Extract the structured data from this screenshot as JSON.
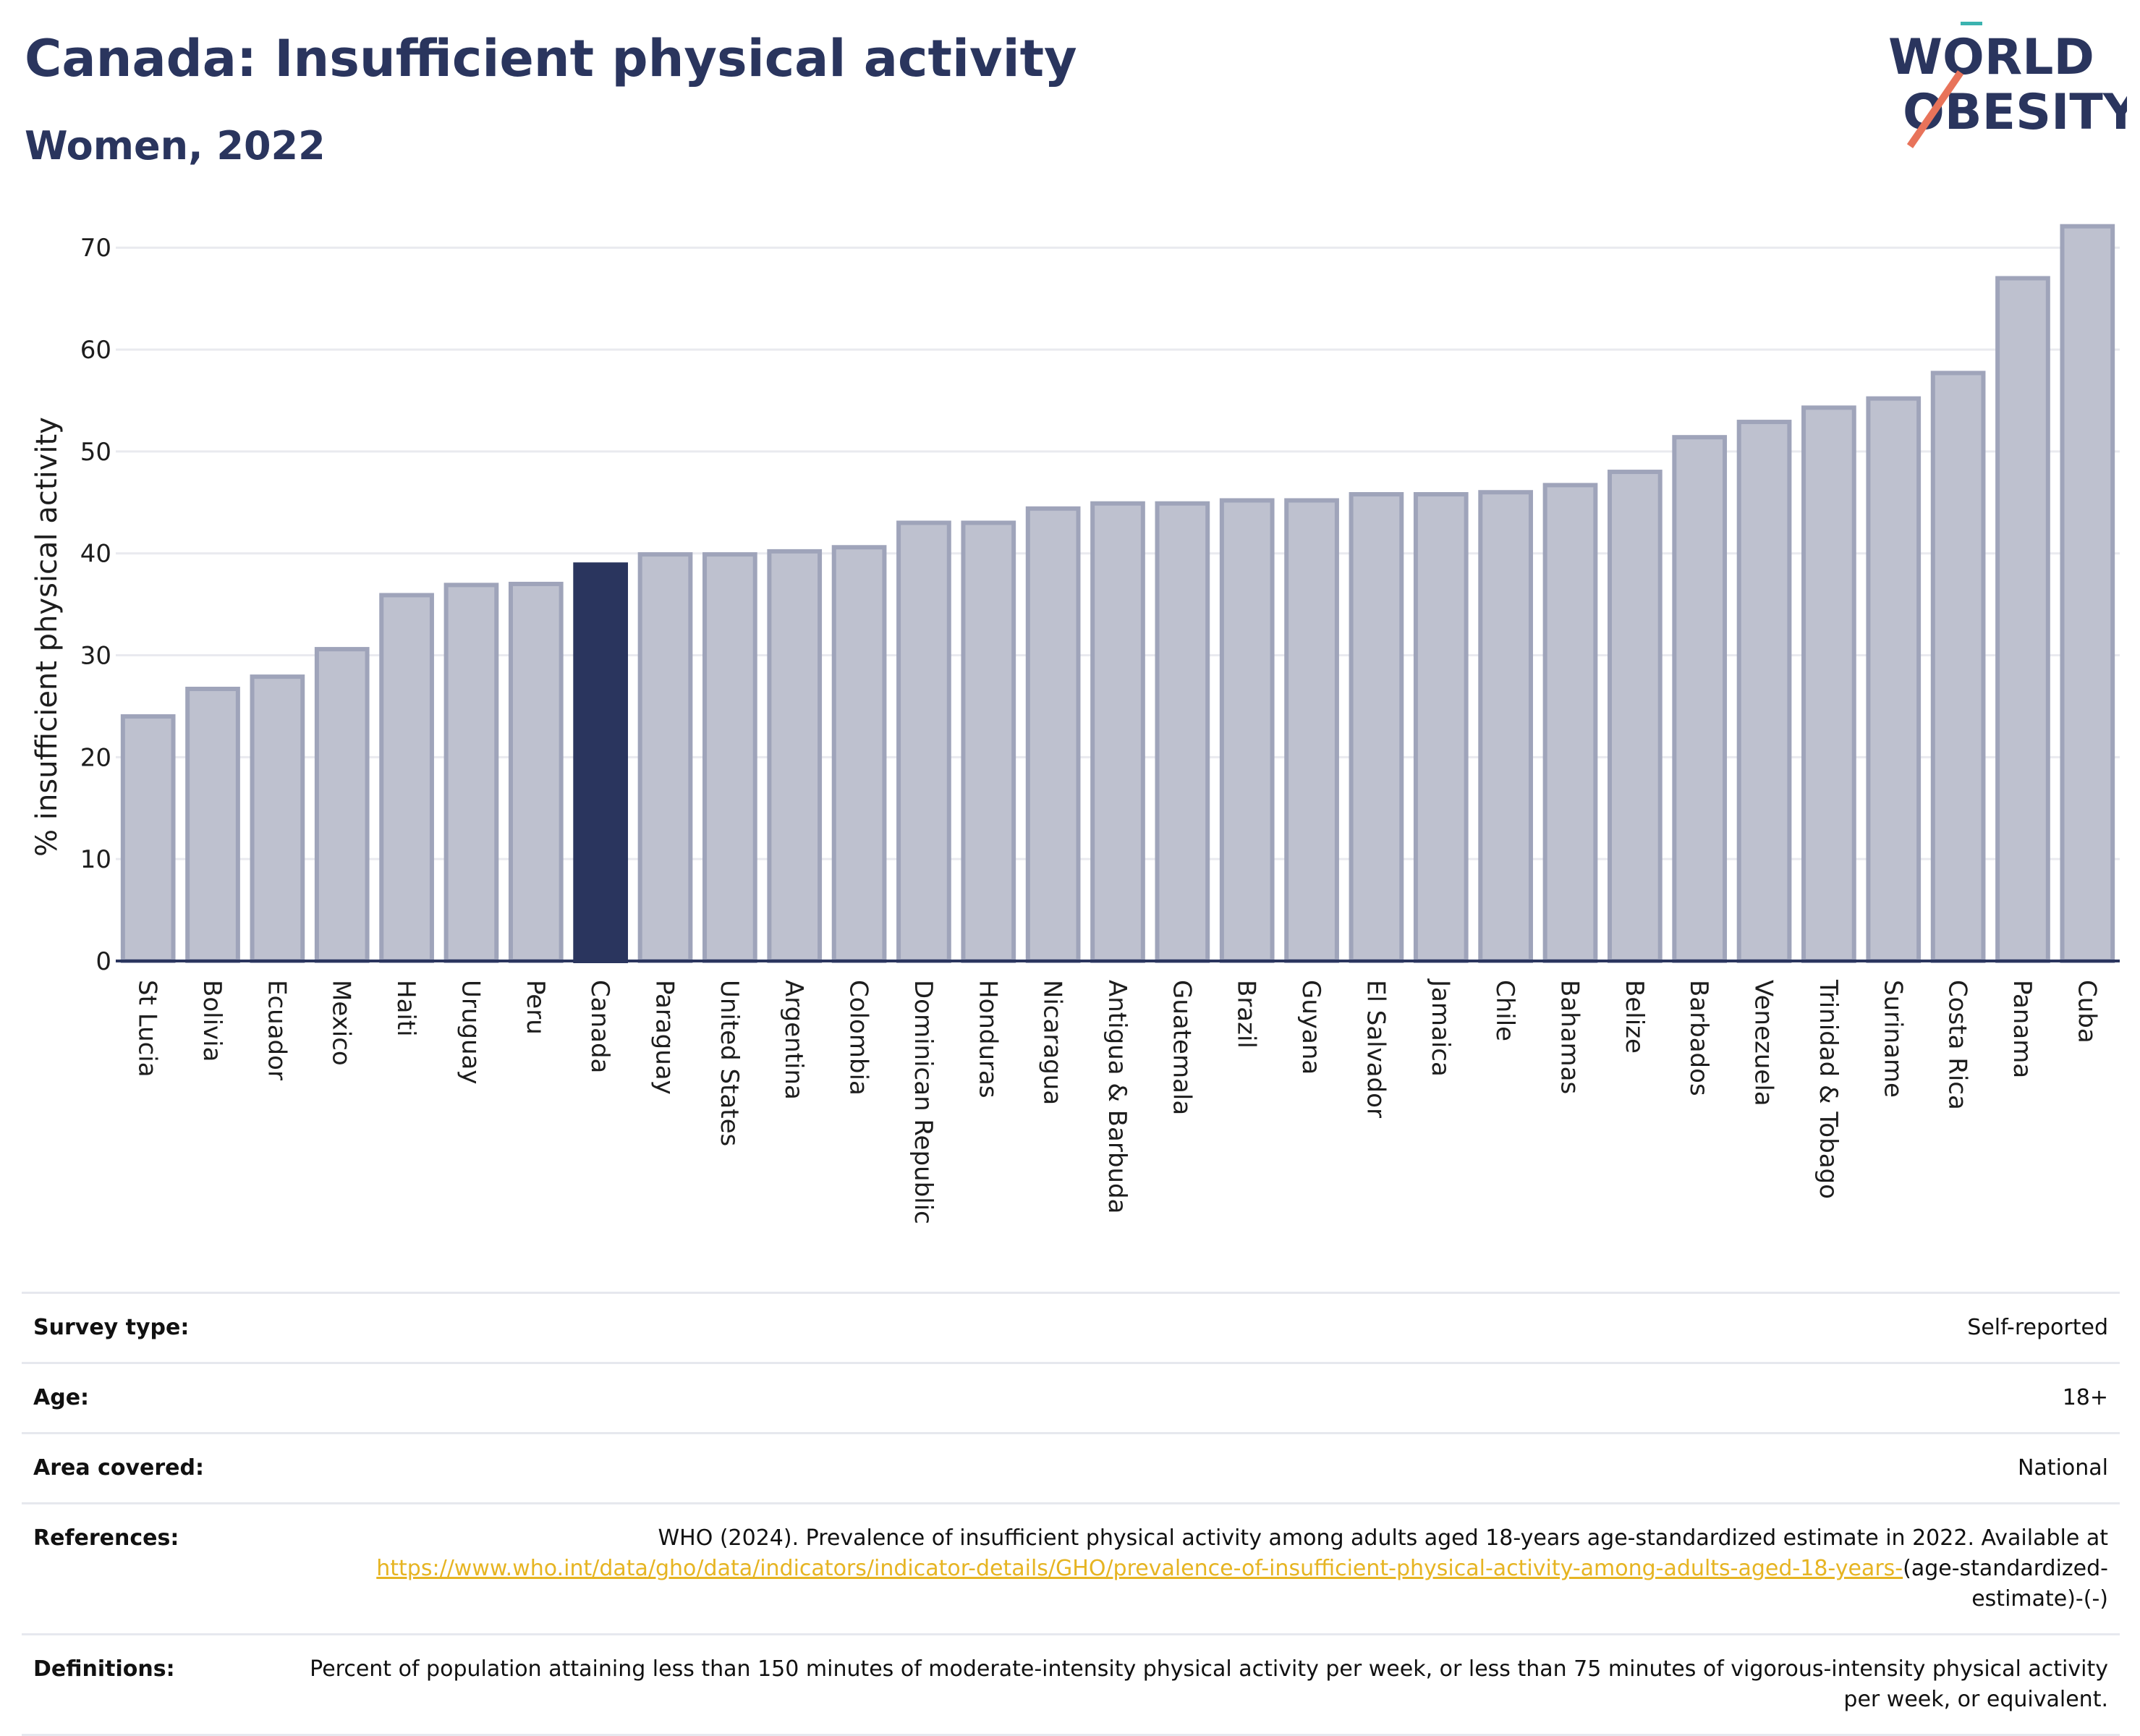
{
  "header": {
    "title": "Canada: Insufficient physical activity",
    "subtitle": "Women, 2022"
  },
  "logo": {
    "line1": "WORLD",
    "line2": "OBESITY"
  },
  "colors": {
    "highlight": "#2a355e",
    "bar": "#bec1cf",
    "bar_edge": "#9fa4ba",
    "accent_teal": "#3bb3b0",
    "accent_red": "#e8735a",
    "link": "#e6b422"
  },
  "chart_data": {
    "type": "bar",
    "title": "Canada: Insufficient physical activity",
    "subtitle": "Women, 2022",
    "xlabel": "",
    "ylabel": "% insufficient physical activity",
    "ylim": [
      0,
      73
    ],
    "yticks": [
      0,
      10,
      20,
      30,
      40,
      50,
      60,
      70
    ],
    "grid": true,
    "highlight": "Canada",
    "categories": [
      "St Lucia",
      "Bolivia",
      "Ecuador",
      "Mexico",
      "Haiti",
      "Uruguay",
      "Peru",
      "Canada",
      "Paraguay",
      "United States",
      "Argentina",
      "Colombia",
      "Dominican Republic",
      "Honduras",
      "Nicaragua",
      "Antigua & Barbuda",
      "Guatemala",
      "Brazil",
      "Guyana",
      "El Salvador",
      "Jamaica",
      "Chile",
      "Bahamas",
      "Belize",
      "Barbados",
      "Venezuela",
      "Trinidad & Tobago",
      "Suriname",
      "Costa Rica",
      "Panama",
      "Cuba"
    ],
    "values": [
      24.0,
      26.7,
      27.9,
      30.6,
      35.9,
      36.9,
      37.0,
      38.9,
      39.9,
      39.9,
      40.2,
      40.6,
      43.0,
      43.0,
      44.4,
      44.9,
      44.9,
      45.2,
      45.2,
      45.8,
      45.8,
      46.0,
      46.7,
      48.0,
      51.4,
      52.9,
      54.3,
      55.2,
      57.7,
      67.0,
      72.1
    ]
  },
  "meta": [
    {
      "key": "Survey type:",
      "value": "Self-reported"
    },
    {
      "key": "Age:",
      "value": "18+"
    },
    {
      "key": "Area covered:",
      "value": "National"
    }
  ],
  "references": {
    "key": "References:",
    "text": "WHO (2024). Prevalence of insufficient physical activity among adults aged 18-years age-standardized estimate in 2022. Available at",
    "link": "https://www.who.int/data/gho/data/indicators/indicator-details/GHO/prevalence-of-insufficient-physical-activity-among-adults-aged-18-years-",
    "tail": "(age-standardized-estimate)-(-)"
  },
  "definitions": {
    "key": "Definitions:",
    "value": "Percent of population attaining less than 150 minutes of moderate-intensity physical activity per week, or less than 75 minutes of vigorous-intensity physical activity per week, or equivalent."
  }
}
